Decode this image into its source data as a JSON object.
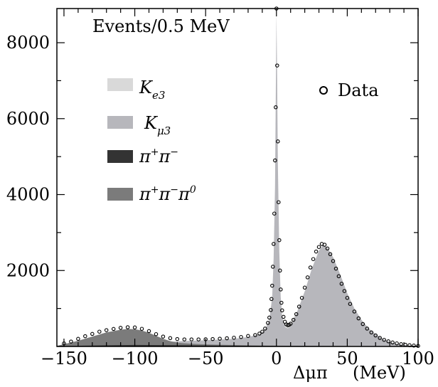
{
  "chart_data": {
    "type": "area",
    "title": "",
    "xlabel": "Δμπ",
    "xlabel_unit": "(MeV)",
    "ylabel": "Events/0.5 MeV",
    "xlim": [
      -155,
      100
    ],
    "ylim": [
      0,
      8900
    ],
    "x_ticks": [
      -150,
      -100,
      -50,
      0,
      50,
      100
    ],
    "y_ticks": [
      2000,
      4000,
      6000,
      8000
    ],
    "legend_position": "left",
    "data_legend_position": "top-right",
    "series": [
      {
        "name": "K_e3",
        "color": "#d9d9d9",
        "points": [
          [
            -155,
            10
          ],
          [
            -120,
            60
          ],
          [
            -80,
            110
          ],
          [
            -50,
            150
          ],
          [
            -30,
            180
          ],
          [
            -15,
            220
          ],
          [
            -5,
            250
          ],
          [
            0,
            300
          ],
          [
            5,
            420
          ],
          [
            10,
            620
          ],
          [
            15,
            950
          ],
          [
            20,
            1450
          ],
          [
            25,
            2050
          ],
          [
            30,
            2520
          ],
          [
            33,
            2680
          ],
          [
            36,
            2600
          ],
          [
            40,
            2350
          ],
          [
            45,
            1900
          ],
          [
            50,
            1400
          ],
          [
            55,
            1000
          ],
          [
            60,
            700
          ],
          [
            65,
            480
          ],
          [
            70,
            320
          ],
          [
            75,
            200
          ],
          [
            80,
            120
          ],
          [
            85,
            70
          ],
          [
            90,
            40
          ],
          [
            95,
            20
          ],
          [
            100,
            10
          ]
        ]
      },
      {
        "name": "K_μ3",
        "color": "#b7b7bc",
        "points": [
          [
            -155,
            20
          ],
          [
            -120,
            70
          ],
          [
            -80,
            120
          ],
          [
            -50,
            165
          ],
          [
            -30,
            200
          ],
          [
            -20,
            250
          ],
          [
            -12,
            320
          ],
          [
            -8,
            450
          ],
          [
            -5,
            700
          ],
          [
            -3,
            1300
          ],
          [
            -2,
            2300
          ],
          [
            -1,
            4200
          ],
          [
            -0.5,
            6500
          ],
          [
            0,
            8800
          ],
          [
            0.5,
            7000
          ],
          [
            1,
            4800
          ],
          [
            2,
            2500
          ],
          [
            3,
            1300
          ],
          [
            4,
            800
          ],
          [
            6,
            520
          ],
          [
            8,
            470
          ],
          [
            10,
            520
          ],
          [
            15,
            950
          ],
          [
            20,
            1450
          ],
          [
            25,
            2050
          ],
          [
            30,
            2520
          ],
          [
            33,
            2680
          ],
          [
            36,
            2600
          ],
          [
            40,
            2350
          ],
          [
            45,
            1900
          ],
          [
            50,
            1400
          ],
          [
            55,
            1000
          ],
          [
            60,
            700
          ],
          [
            65,
            480
          ],
          [
            70,
            320
          ],
          [
            75,
            200
          ],
          [
            80,
            120
          ],
          [
            85,
            70
          ],
          [
            90,
            40
          ],
          [
            95,
            20
          ],
          [
            100,
            10
          ]
        ]
      },
      {
        "name": "π⁺π⁻",
        "color": "#333333",
        "points": [
          [
            -155,
            10
          ],
          [
            -120,
            30
          ],
          [
            -100,
            40
          ],
          [
            -60,
            30
          ],
          [
            -30,
            20
          ],
          [
            0,
            15
          ],
          [
            100,
            5
          ]
        ]
      },
      {
        "name": "π⁺π⁻π⁰",
        "color": "#7b7b7b",
        "points": [
          [
            -155,
            15
          ],
          [
            -150,
            60
          ],
          [
            -140,
            150
          ],
          [
            -130,
            260
          ],
          [
            -120,
            370
          ],
          [
            -110,
            440
          ],
          [
            -105,
            460
          ],
          [
            -100,
            455
          ],
          [
            -95,
            420
          ],
          [
            -90,
            360
          ],
          [
            -85,
            280
          ],
          [
            -80,
            200
          ],
          [
            -75,
            140
          ],
          [
            -70,
            100
          ],
          [
            -60,
            70
          ],
          [
            -50,
            55
          ],
          [
            -40,
            45
          ],
          [
            -20,
            30
          ],
          [
            0,
            20
          ],
          [
            50,
            10
          ],
          [
            100,
            5
          ]
        ]
      },
      {
        "name": "Data",
        "style": "open-circles",
        "points": [
          [
            -150,
            80
          ],
          [
            -145,
            130
          ],
          [
            -140,
            200
          ],
          [
            -135,
            270
          ],
          [
            -130,
            330
          ],
          [
            -125,
            390
          ],
          [
            -120,
            430
          ],
          [
            -115,
            460
          ],
          [
            -110,
            490
          ],
          [
            -105,
            505
          ],
          [
            -100,
            500
          ],
          [
            -95,
            465
          ],
          [
            -90,
            405
          ],
          [
            -85,
            325
          ],
          [
            -80,
            260
          ],
          [
            -75,
            220
          ],
          [
            -70,
            195
          ],
          [
            -65,
            185
          ],
          [
            -60,
            185
          ],
          [
            -55,
            185
          ],
          [
            -50,
            190
          ],
          [
            -45,
            195
          ],
          [
            -40,
            205
          ],
          [
            -35,
            215
          ],
          [
            -30,
            230
          ],
          [
            -25,
            250
          ],
          [
            -20,
            275
          ],
          [
            -15,
            300
          ],
          [
            -12,
            340
          ],
          [
            -10,
            390
          ],
          [
            -8,
            470
          ],
          [
            -6,
            620
          ],
          [
            -5,
            760
          ],
          [
            -4,
            960
          ],
          [
            -3.5,
            1250
          ],
          [
            -3,
            1600
          ],
          [
            -2.5,
            2100
          ],
          [
            -2,
            2700
          ],
          [
            -1.5,
            3500
          ],
          [
            -1,
            4900
          ],
          [
            -0.5,
            6300
          ],
          [
            0,
            8900
          ],
          [
            0.5,
            7400
          ],
          [
            1,
            5400
          ],
          [
            1.5,
            3800
          ],
          [
            2,
            2800
          ],
          [
            2.5,
            2000
          ],
          [
            3,
            1500
          ],
          [
            3.5,
            1150
          ],
          [
            4,
            950
          ],
          [
            5,
            780
          ],
          [
            6,
            650
          ],
          [
            7,
            580
          ],
          [
            8,
            560
          ],
          [
            9,
            570
          ],
          [
            10,
            600
          ],
          [
            12,
            700
          ],
          [
            14,
            850
          ],
          [
            16,
            1050
          ],
          [
            18,
            1280
          ],
          [
            20,
            1550
          ],
          [
            22,
            1820
          ],
          [
            24,
            2080
          ],
          [
            26,
            2300
          ],
          [
            28,
            2500
          ],
          [
            30,
            2620
          ],
          [
            32,
            2700
          ],
          [
            34,
            2680
          ],
          [
            36,
            2580
          ],
          [
            38,
            2430
          ],
          [
            40,
            2250
          ],
          [
            42,
            2050
          ],
          [
            44,
            1850
          ],
          [
            46,
            1650
          ],
          [
            48,
            1460
          ],
          [
            50,
            1280
          ],
          [
            52,
            1120
          ],
          [
            55,
            920
          ],
          [
            58,
            740
          ],
          [
            61,
            590
          ],
          [
            64,
            470
          ],
          [
            67,
            370
          ],
          [
            70,
            290
          ],
          [
            73,
            225
          ],
          [
            76,
            175
          ],
          [
            79,
            135
          ],
          [
            82,
            105
          ],
          [
            85,
            80
          ],
          [
            88,
            60
          ],
          [
            91,
            45
          ],
          [
            94,
            32
          ],
          [
            97,
            22
          ],
          [
            100,
            15
          ]
        ]
      }
    ],
    "colors": {
      "axis": "#000000",
      "background": "#ffffff"
    }
  }
}
